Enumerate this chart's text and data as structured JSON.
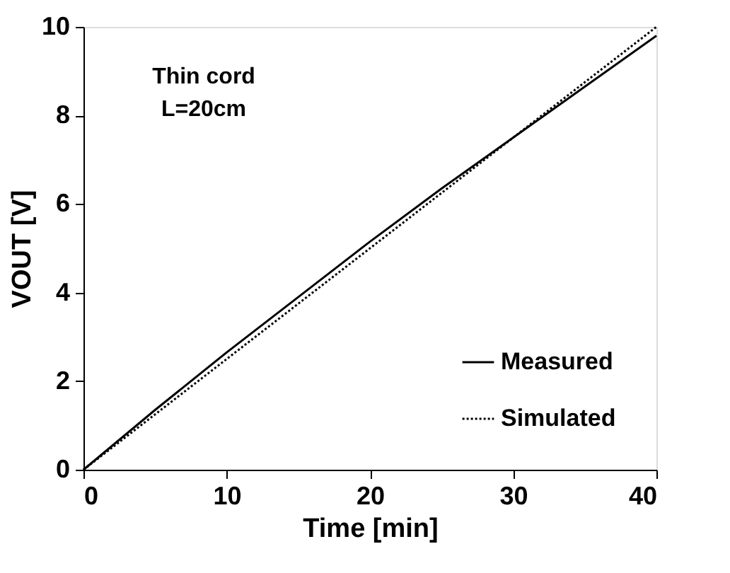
{
  "chart_data": {
    "type": "line",
    "xlabel": "Time [min]",
    "ylabel": "VOUT [V]",
    "xlim": [
      0,
      40
    ],
    "xticks": [
      0,
      10,
      20,
      30,
      40
    ],
    "ylim": [
      0,
      10
    ],
    "yticks": [
      0,
      2,
      4,
      6,
      8,
      10
    ],
    "grid": false,
    "legend": "bottom right",
    "marker": "none",
    "annotations": [
      "Thin cord",
      "L=20cm"
    ],
    "series": [
      {
        "name": "Measured",
        "color": "#000000",
        "line_style": "solid",
        "x": [
          0,
          5,
          10,
          15,
          20,
          25,
          30,
          35,
          40
        ],
        "values": [
          0,
          1.35,
          2.65,
          3.9,
          5.15,
          6.35,
          7.5,
          8.65,
          9.8
        ]
      },
      {
        "name": "Simulated",
        "color": "#000000",
        "line_style": "dotted",
        "x": [
          0,
          40
        ],
        "values": [
          0,
          10
        ]
      }
    ]
  }
}
